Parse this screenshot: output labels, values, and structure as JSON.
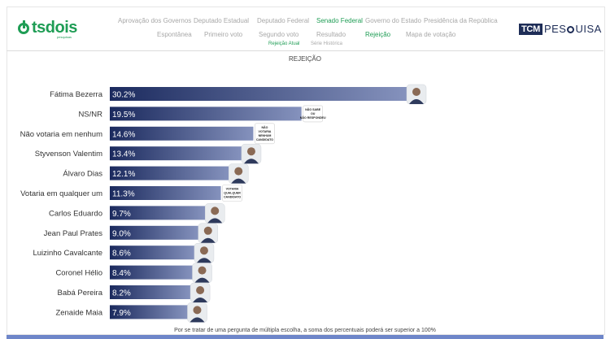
{
  "nav": {
    "row1": [
      {
        "label": "Aprovação dos Governos",
        "active": false
      },
      {
        "label": "Deputado Estadual",
        "active": false
      },
      {
        "label": "Deputado Federal",
        "active": false
      },
      {
        "label": "Senado Federal",
        "active": true
      },
      {
        "label": "Governo do Estado",
        "active": false
      },
      {
        "label": "Presidência da República",
        "active": false
      }
    ],
    "row2": [
      {
        "label": "Espontânea",
        "active": false
      },
      {
        "label": "Primeiro voto",
        "active": false
      },
      {
        "label": "Segundo voto",
        "active": false
      },
      {
        "label": "Resultado",
        "active": false
      },
      {
        "label": "Rejeição",
        "active": true
      },
      {
        "label": "Mapa de votação",
        "active": false
      }
    ],
    "row3": [
      {
        "label": "Rejeição Atual",
        "active": true
      },
      {
        "label": "Série Histórica",
        "active": false
      }
    ]
  },
  "logo": {
    "text": "tsdois",
    "sub": "pesquisas"
  },
  "brand": {
    "box": "TCM",
    "text_before": "PES",
    "text_after": "UISA"
  },
  "chart_title": "REJEIÇÃO",
  "footnote": "Por se tratar de uma pergunta de múltipla escolha, a soma dos percentuais poderá ser superior a 100%",
  "colors": {
    "bar_start": "#1b2a5e",
    "bar_end": "#8592bd",
    "accent": "#1f9d55",
    "brand": "#1e2d57"
  },
  "chart_data": {
    "type": "bar",
    "orientation": "horizontal",
    "title": "REJEIÇÃO",
    "categories": [
      "Fátima Bezerra",
      "NS/NR",
      "Não votaria em nenhum",
      "Styvenson Valentim",
      "Álvaro Dias",
      "Votaria em qualquer um",
      "Carlos Eduardo",
      "Jean Paul Prates",
      "Luizinho Cavalcante",
      "Coronel Hélio",
      "Babá Pereira",
      "Zenaide Maia"
    ],
    "values": [
      30.2,
      19.5,
      14.6,
      13.4,
      12.1,
      11.3,
      9.7,
      9.0,
      8.6,
      8.4,
      8.2,
      7.9
    ],
    "value_labels": [
      "30.2%",
      "19.5%",
      "14.6%",
      "13.4%",
      "12.1%",
      "11.3%",
      "9.7%",
      "9.0%",
      "8.6%",
      "8.4%",
      "8.2%",
      "7.9%"
    ],
    "markers": [
      {
        "kind": "photo",
        "lines": []
      },
      {
        "kind": "card",
        "lines": [
          "NÃO SABE",
          "OU",
          "NÃO RESPONDEU"
        ]
      },
      {
        "kind": "card",
        "lines": [
          "NÃO",
          "VOTARIA",
          "NENHUM",
          "CANDIDATO"
        ]
      },
      {
        "kind": "photo",
        "lines": []
      },
      {
        "kind": "photo",
        "lines": []
      },
      {
        "kind": "card",
        "lines": [
          "VOTARIA",
          "QUALQUER",
          "CANDIDATO"
        ]
      },
      {
        "kind": "photo",
        "lines": []
      },
      {
        "kind": "photo",
        "lines": []
      },
      {
        "kind": "photo",
        "lines": []
      },
      {
        "kind": "photo",
        "lines": []
      },
      {
        "kind": "photo",
        "lines": []
      },
      {
        "kind": "photo",
        "lines": []
      }
    ],
    "xlim": [
      0,
      30.2
    ]
  }
}
